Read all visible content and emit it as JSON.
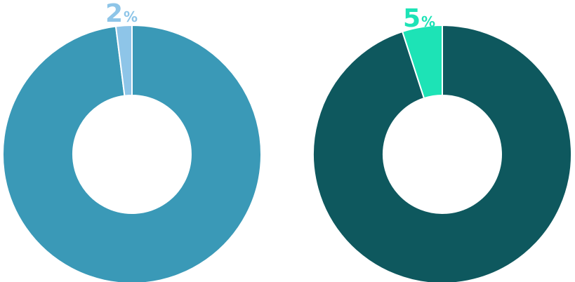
{
  "chart_data": [
    {
      "type": "pie",
      "variant": "donut",
      "slices": [
        {
          "value": 2,
          "color": "#8ec5e8",
          "highlighted": true
        },
        {
          "value": 98,
          "color": "#3a99b7",
          "highlighted": false
        }
      ],
      "label": {
        "number": "2",
        "symbol": "%",
        "color": "#8ec5e8"
      }
    },
    {
      "type": "pie",
      "variant": "donut",
      "slices": [
        {
          "value": 5,
          "color": "#1de3b6",
          "highlighted": true
        },
        {
          "value": 95,
          "color": "#0e585e",
          "highlighted": false
        }
      ],
      "label": {
        "number": "5",
        "symbol": "%",
        "color": "#1de3b6"
      }
    }
  ]
}
